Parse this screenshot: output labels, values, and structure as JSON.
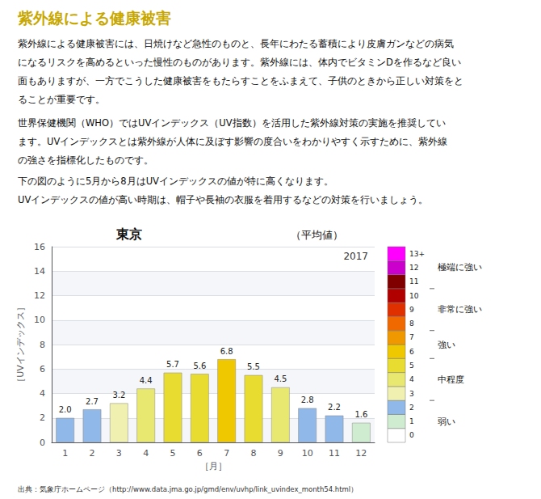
{
  "chart_data": {
    "type": "bar",
    "header": "紫外線による健康被害",
    "header_color": "#c8a800",
    "body": [
      "紫外線による健康被害には、日焼けなど急性のものと、長年にわたる蓄積により皮膚ガンなどの病気",
      "になるリスクを高めるといった慢性のものがあります。紫外線には、体内でビタミンDを作るなど良い",
      "面もありますが、一方でこうした健康被害をもたらすことをふまえて、子供のときから正しい対策をと",
      "ることが重要です。",
      "世界保健機関（WHO）ではUVインデックス（UV指数）を活用した紫外線対策の実施を推奨してい",
      "ます。UVインデックスとは紫外線が人体に及ぼす影響の度合いをわかりやすく示すために、紫外線",
      "の強さを指標化したものです。",
      "下の図のように5月から8月はUVインデックスの値が特に高くなります。",
      "UVインデックスの値が高い時期は、帽子や長袖の衣服を着用するなどの対策を行いましょう。"
    ],
    "title": "東京",
    "subtitle": "（平均値）",
    "annotation": "2017",
    "xlabel": "［月］",
    "ylabel": "［UVインデックス］",
    "categories": [
      "1",
      "2",
      "3",
      "4",
      "5",
      "6",
      "7",
      "8",
      "9",
      "10",
      "11",
      "12"
    ],
    "values": [
      2.0,
      2.7,
      3.2,
      4.4,
      5.7,
      5.6,
      6.8,
      5.5,
      4.5,
      2.8,
      2.2,
      1.6
    ],
    "value_labels": [
      "2.0",
      "2.7",
      "3.2",
      "4.4",
      "5.7",
      "5.6",
      "6.8",
      "5.5",
      "4.5",
      "2.8",
      "2.2",
      "1.6"
    ],
    "colors": [
      "#90b8e8",
      "#90b8e8",
      "#f0f0b0",
      "#e8e870",
      "#e8dc30",
      "#e8dc30",
      "#f0c800",
      "#e8dc30",
      "#e8e870",
      "#90b8e8",
      "#90b8e8",
      "#d0ecd0"
    ],
    "data_labels": true,
    "ylim": [
      0,
      16
    ],
    "yticks": [
      0,
      2,
      4,
      6,
      8,
      10,
      12,
      14,
      16
    ],
    "grid": true,
    "color_scale": [
      {
        "value": 0,
        "label": "0",
        "color": "#ffffff"
      },
      {
        "value": 1,
        "label": "1",
        "color": "#d0ecd0"
      },
      {
        "value": 2,
        "label": "2",
        "color": "#90b8e8"
      },
      {
        "value": 3,
        "label": "3",
        "color": "#f0f0b0"
      },
      {
        "value": 4,
        "label": "4",
        "color": "#e8e870"
      },
      {
        "value": 5,
        "label": "5",
        "color": "#e8dc30"
      },
      {
        "value": 6,
        "label": "6",
        "color": "#f0c800"
      },
      {
        "value": 7,
        "label": "7",
        "color": "#f09800"
      },
      {
        "value": 8,
        "label": "8",
        "color": "#f06800"
      },
      {
        "value": 9,
        "label": "9",
        "color": "#e03000"
      },
      {
        "value": 10,
        "label": "10",
        "color": "#b00000"
      },
      {
        "value": 11,
        "label": "11",
        "color": "#800000"
      },
      {
        "value": 12,
        "label": "12",
        "color": "#cc00cc"
      },
      {
        "value": 13,
        "label": "13+",
        "color": "#ff00ff"
      }
    ],
    "color_scale_groups": [
      {
        "label": "極端に強い",
        "levels": [
          11,
          12,
          13
        ]
      },
      {
        "label": "非常に強い",
        "levels": [
          8,
          9,
          10
        ]
      },
      {
        "label": "強い",
        "levels": [
          6,
          7
        ]
      },
      {
        "label": "中程度",
        "levels": [
          3,
          4,
          5
        ]
      },
      {
        "label": "弱い",
        "levels": [
          0,
          1,
          2
        ]
      }
    ],
    "footer": "出典：気象庁ホームページ（http://www.data.jma.go.jp/gmd/env/uvhp/link_uvindex_month54.html）"
  }
}
